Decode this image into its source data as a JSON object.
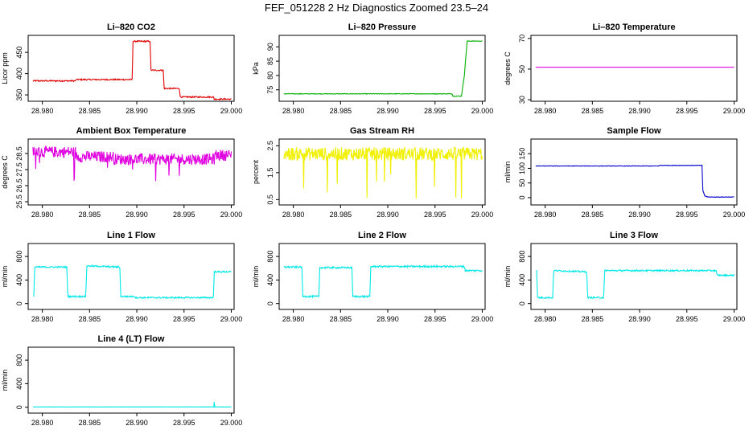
{
  "page": {
    "title": "FEF_051228  2 Hz Diagnostics Zoomed 23.5–24"
  },
  "chart_data": [
    {
      "type": "line",
      "title": "Li–820 CO2",
      "ylabel": "Licor ppm",
      "xlim": [
        28.9785,
        29.0003
      ],
      "ylim": [
        335,
        490
      ],
      "yticks": [
        "350",
        "400",
        "450"
      ],
      "yticks_values": [
        350,
        400,
        450
      ],
      "xticks": [
        "28.980",
        "28.985",
        "28.990",
        "28.995",
        "29.000"
      ],
      "xticks_values": [
        28.98,
        28.985,
        28.99,
        28.995,
        29.0
      ],
      "color": "#e00000",
      "noise": 1.5,
      "series": [
        {
          "x": [
            28.979,
            28.9835,
            28.9836,
            28.9895,
            28.9896,
            28.9914,
            28.9915,
            28.9928,
            28.9929,
            28.9945,
            28.9946,
            28.9981,
            28.9982,
            29.0
          ],
          "y": [
            383,
            383,
            386,
            386,
            476,
            476,
            408,
            408,
            365,
            365,
            345,
            345,
            340,
            340
          ]
        }
      ]
    },
    {
      "type": "line",
      "title": "Li–820 Pressure",
      "ylabel": "kPa",
      "xlim": [
        28.9785,
        29.0003
      ],
      "ylim": [
        71,
        94
      ],
      "yticks": [
        "75",
        "80",
        "85",
        "90"
      ],
      "yticks_values": [
        75,
        80,
        85,
        90
      ],
      "xticks": [
        "28.980",
        "28.985",
        "28.990",
        "28.995",
        "29.000"
      ],
      "xticks_values": [
        28.98,
        28.985,
        28.99,
        28.995,
        29.0
      ],
      "color": "#00b000",
      "noise": 0.1,
      "series": [
        {
          "x": [
            28.979,
            28.9968,
            28.9969,
            28.9978,
            28.9981,
            28.9984,
            29.0
          ],
          "y": [
            73.6,
            73.6,
            72.8,
            72.8,
            80,
            92,
            92
          ]
        }
      ]
    },
    {
      "type": "line",
      "title": "Li–820 Temperature",
      "ylabel": "degrees C",
      "xlim": [
        28.9785,
        29.0003
      ],
      "ylim": [
        29,
        72
      ],
      "yticks": [
        "30",
        "50",
        "70"
      ],
      "yticks_values": [
        30,
        50,
        70
      ],
      "xticks": [
        "28.980",
        "28.985",
        "28.990",
        "28.995",
        "29.000"
      ],
      "xticks_values": [
        28.98,
        28.985,
        28.99,
        28.995,
        29.0
      ],
      "color": "#e000e0",
      "noise": 0,
      "series": [
        {
          "x": [
            28.979,
            29.0
          ],
          "y": [
            51.2,
            51.2
          ]
        }
      ]
    },
    {
      "type": "line",
      "title": "Ambient Box Temperature",
      "ylabel": "degrees C",
      "xlim": [
        28.9785,
        29.0003
      ],
      "ylim": [
        25.3,
        29.4
      ],
      "yticks": [
        "25.5",
        "26.5",
        "27.5",
        "28.5"
      ],
      "yticks_values": [
        25.5,
        26.5,
        27.5,
        28.5
      ],
      "xticks": [
        "28.980",
        "28.985",
        "28.990",
        "28.995",
        "29.000"
      ],
      "xticks_values": [
        28.98,
        28.985,
        28.99,
        28.995,
        29.0
      ],
      "color": "#e000e0",
      "noise": 0.35,
      "spikes": -1.2,
      "series": [
        {
          "x": [
            28.979,
            28.9835,
            28.9836,
            28.9875,
            28.9876,
            28.9982,
            28.9983,
            29.0
          ],
          "y": [
            28.6,
            28.6,
            28.3,
            28.3,
            28.15,
            28.15,
            28.4,
            28.4
          ]
        }
      ]
    },
    {
      "type": "line",
      "title": "Gas Stream RH",
      "ylabel": "percent",
      "xlim": [
        28.9785,
        29.0003
      ],
      "ylim": [
        0.3,
        2.75
      ],
      "yticks": [
        "0.5",
        "1.5",
        "2.5"
      ],
      "yticks_values": [
        0.5,
        1.5,
        2.5
      ],
      "xticks": [
        "28.980",
        "28.985",
        "28.990",
        "28.995",
        "29.000"
      ],
      "xticks_values": [
        28.98,
        28.985,
        28.99,
        28.995,
        29.0
      ],
      "color": "#f0f000",
      "noise": 0.25,
      "spikes": -1.3,
      "series": [
        {
          "x": [
            28.979,
            29.0
          ],
          "y": [
            2.2,
            2.2
          ]
        }
      ]
    },
    {
      "type": "line",
      "title": "Sample Flow",
      "ylabel": "ml/min",
      "xlim": [
        28.9785,
        29.0003
      ],
      "ylim": [
        -25,
        200
      ],
      "yticks": [
        "0",
        "50",
        "100",
        "150"
      ],
      "yticks_values": [
        0,
        50,
        100,
        150
      ],
      "xticks": [
        "28.980",
        "28.985",
        "28.990",
        "28.995",
        "29.000"
      ],
      "xticks_values": [
        28.98,
        28.985,
        28.99,
        28.995,
        29.0
      ],
      "color": "#0000d0",
      "noise": 0.8,
      "series": [
        {
          "x": [
            28.979,
            28.992,
            28.9921,
            28.9966,
            28.9967,
            28.9969,
            28.9972,
            29.0
          ],
          "y": [
            108,
            108,
            110,
            110,
            25,
            6,
            2,
            2
          ]
        }
      ]
    },
    {
      "type": "line",
      "title": "Line 1 Flow",
      "ylabel": "ml/min",
      "xlim": [
        28.9785,
        29.0003
      ],
      "ylim": [
        -100,
        1020
      ],
      "yticks": [
        "0",
        "400",
        "800"
      ],
      "yticks_values": [
        0,
        400,
        800
      ],
      "xticks": [
        "28.980",
        "28.985",
        "28.990",
        "28.995",
        "29.000"
      ],
      "xticks_values": [
        28.98,
        28.985,
        28.99,
        28.995,
        29.0
      ],
      "color": "#00e8e8",
      "noise": 12,
      "series": [
        {
          "x": [
            28.9791,
            28.9792,
            28.9826,
            28.9827,
            28.9846,
            28.9847,
            28.9882,
            28.9883,
            28.9898,
            28.9899,
            28.9981,
            28.9982,
            29.0
          ],
          "y": [
            130,
            620,
            620,
            120,
            120,
            640,
            620,
            120,
            120,
            100,
            100,
            540,
            540
          ]
        }
      ]
    },
    {
      "type": "line",
      "title": "Line 2 Flow",
      "ylabel": "ml/min",
      "xlim": [
        28.9785,
        29.0003
      ],
      "ylim": [
        -100,
        1020
      ],
      "yticks": [
        "0",
        "400",
        "800"
      ],
      "yticks_values": [
        0,
        400,
        800
      ],
      "xticks": [
        "28.980",
        "28.985",
        "28.990",
        "28.995",
        "29.000"
      ],
      "xticks_values": [
        28.98,
        28.985,
        28.99,
        28.995,
        29.0
      ],
      "color": "#00e8e8",
      "noise": 14,
      "series": [
        {
          "x": [
            28.979,
            28.9809,
            28.981,
            28.9827,
            28.9828,
            28.9862,
            28.9863,
            28.9881,
            28.9882,
            28.9981,
            28.9982,
            29.0
          ],
          "y": [
            620,
            620,
            120,
            120,
            610,
            610,
            120,
            120,
            630,
            630,
            560,
            560
          ]
        }
      ]
    },
    {
      "type": "line",
      "title": "Line 3 Flow",
      "ylabel": "ml/min",
      "xlim": [
        28.9785,
        29.0003
      ],
      "ylim": [
        -100,
        1020
      ],
      "yticks": [
        "0",
        "400",
        "800"
      ],
      "yticks_values": [
        0,
        400,
        800
      ],
      "xticks": [
        "28.980",
        "28.985",
        "28.990",
        "28.995",
        "29.000"
      ],
      "xticks_values": [
        28.98,
        28.985,
        28.99,
        28.995,
        29.0
      ],
      "color": "#00e8e8",
      "noise": 12,
      "series": [
        {
          "x": [
            28.9791,
            28.9792,
            28.9808,
            28.9809,
            28.9844,
            28.9845,
            28.9862,
            28.9863,
            28.9981,
            28.9982,
            29.0
          ],
          "y": [
            560,
            100,
            100,
            560,
            540,
            100,
            100,
            560,
            560,
            480,
            480
          ]
        }
      ]
    },
    {
      "type": "line",
      "title": "Line 4 (LT) Flow",
      "ylabel": "ml/min",
      "xlim": [
        28.9785,
        29.0003
      ],
      "ylim": [
        -100,
        1020
      ],
      "yticks": [
        "0",
        "400",
        "800"
      ],
      "yticks_values": [
        0,
        400,
        800
      ],
      "xticks": [
        "28.980",
        "28.985",
        "28.990",
        "28.995",
        "29.000"
      ],
      "xticks_values": [
        28.98,
        28.985,
        28.99,
        28.995,
        29.0
      ],
      "color": "#00e8e8",
      "noise": 2,
      "series": [
        {
          "x": [
            28.979,
            28.99815,
            28.9982,
            28.99825,
            29.0
          ],
          "y": [
            5,
            5,
            90,
            5,
            5
          ]
        }
      ]
    }
  ]
}
